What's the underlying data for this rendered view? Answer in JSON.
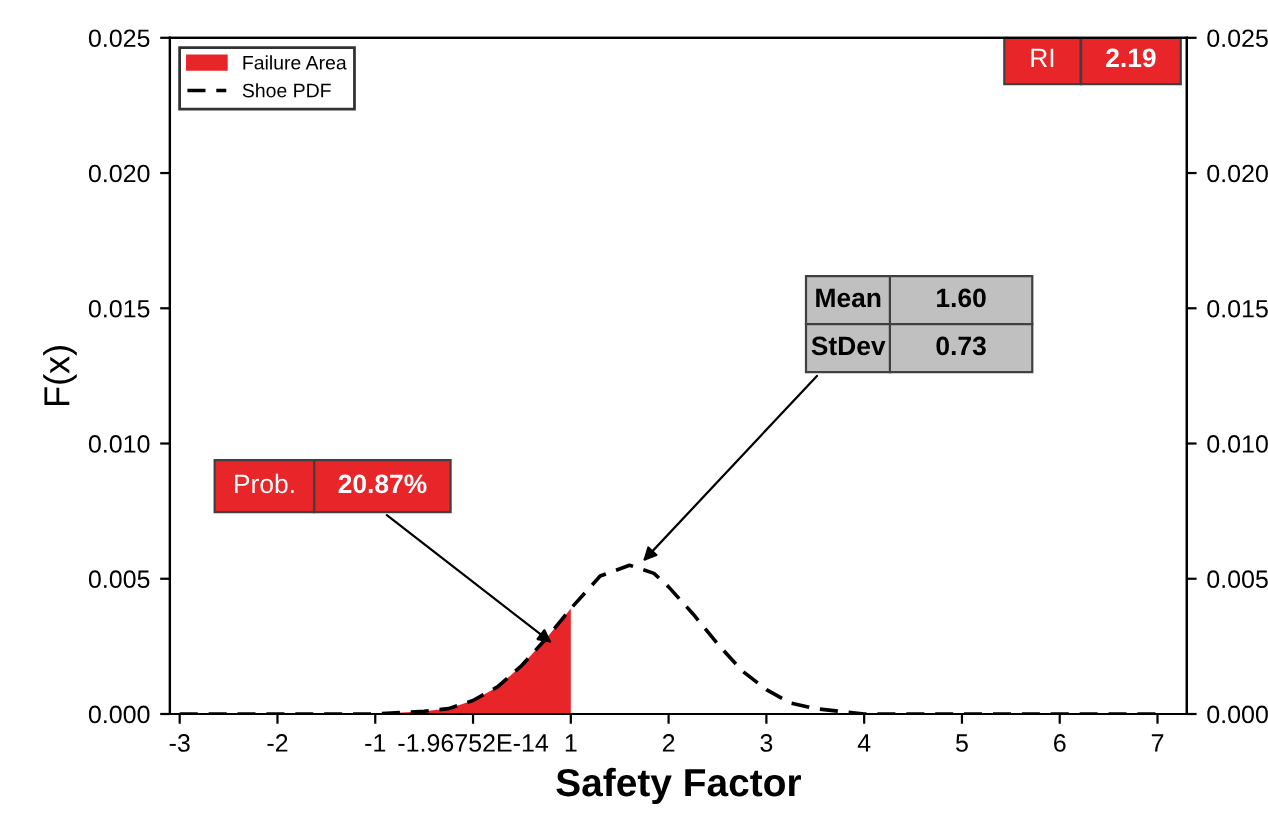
{
  "chart_data": {
    "type": "line",
    "xlabel": "Safety Factor",
    "ylabel": "F(x)",
    "xlim": [
      -3.1,
      7.3
    ],
    "ylim": [
      0,
      0.025
    ],
    "y2lim": [
      0,
      0.025
    ],
    "xticks": [
      -3,
      -2,
      -1,
      {
        "value": 0,
        "label": "-1.96752E-14"
      },
      1,
      2,
      3,
      4,
      5,
      6,
      7
    ],
    "yticks": [
      {
        "value": 0,
        "label": "0.000"
      },
      {
        "value": 0.005,
        "label": "0.005"
      },
      {
        "value": 0.01,
        "label": "0.010"
      },
      {
        "value": 0.015,
        "label": "0.015"
      },
      {
        "value": 0.02,
        "label": "0.020"
      },
      {
        "value": 0.025,
        "label": "0.025"
      }
    ],
    "y2ticks": [
      {
        "value": 0,
        "label": "0.000"
      },
      {
        "value": 0.005,
        "label": "0.005"
      },
      {
        "value": 0.01,
        "label": "0.010"
      },
      {
        "value": 0.015,
        "label": "0.015"
      },
      {
        "value": 0.02,
        "label": "0.020"
      },
      {
        "value": 0.025,
        "label": "0.025"
      }
    ],
    "legend": "top left",
    "grid": false,
    "series": [
      {
        "name": "Failure Area",
        "type": "area",
        "color": "#e8262a",
        "x": [
          -1,
          -0.5,
          -0.25,
          0,
          0.25,
          0.5,
          0.75,
          1
        ],
        "values": [
          0,
          0.0001,
          0.0002,
          0.0005,
          0.001,
          0.0018,
          0.0028,
          0.0039
        ]
      },
      {
        "name": "Shoe PDF",
        "color": "#000000",
        "line_style": "dashed",
        "x": [
          -3,
          -1,
          -0.5,
          -0.25,
          0,
          0.25,
          0.5,
          0.75,
          1,
          1.15,
          1.3,
          1.6,
          1.85,
          2,
          2.25,
          2.5,
          2.75,
          3,
          3.25,
          3.5,
          4,
          7
        ],
        "values": [
          0,
          0,
          0.0001,
          0.0002,
          0.0005,
          0.001,
          0.0018,
          0.0028,
          0.0039,
          0.0045,
          0.0051,
          0.0055,
          0.0052,
          0.0047,
          0.0037,
          0.0026,
          0.0016,
          0.0009,
          0.0004,
          0.0002,
          0,
          0
        ]
      }
    ],
    "annotations": [
      "Prob.",
      {
        "text": "20.87%",
        "x": 0.85,
        "y": 0.0025
      },
      "Mean",
      "1.60",
      {
        "text": "StDev",
        "x": 1.7,
        "y": 0.0055
      },
      "0.73",
      "RI",
      "2.19"
    ]
  }
}
